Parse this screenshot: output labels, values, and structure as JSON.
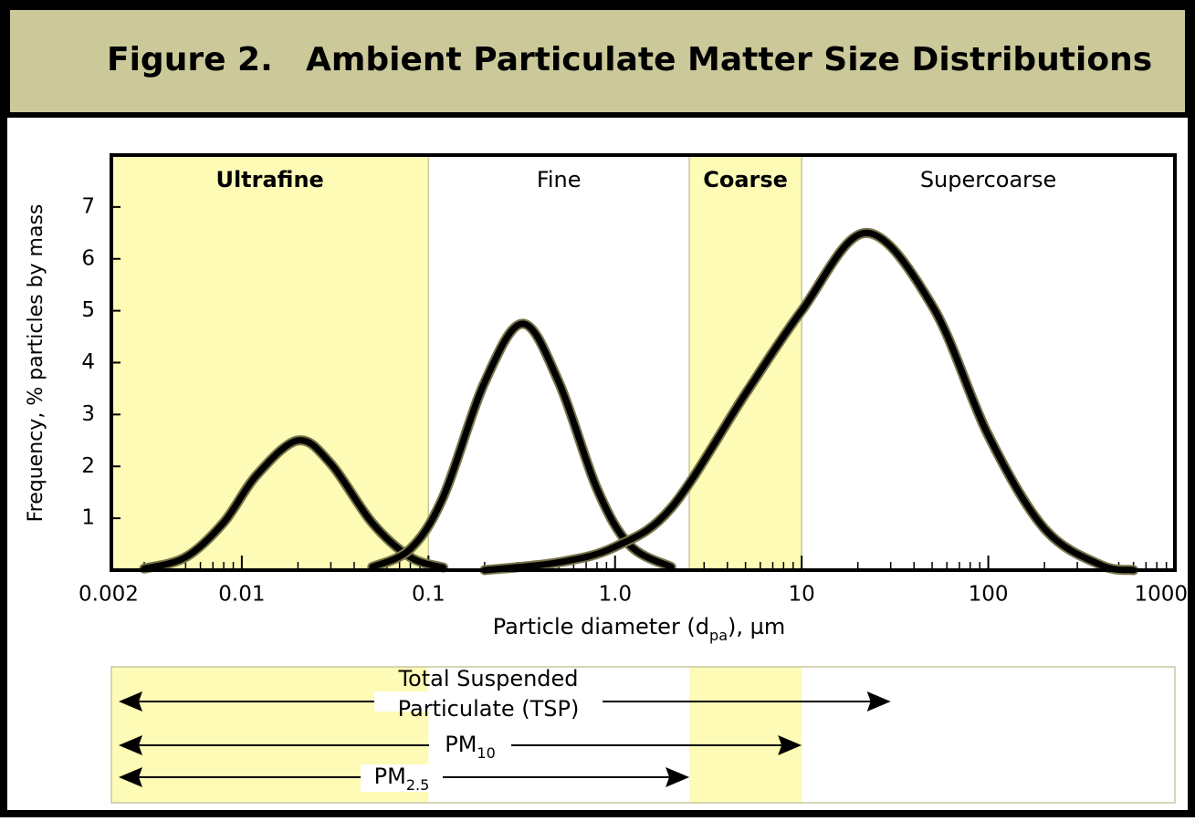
{
  "chart_data": {
    "type": "line",
    "figure_label": "Figure 2.",
    "title": "Ambient Particulate Matter Size Distributions",
    "y_label": "Frequency, % particles by mass",
    "x_label": {
      "text": "Particle diameter (d",
      "sub": "pa",
      "tail": "), µm"
    },
    "x_scale": "log",
    "minor_ticks": true,
    "xlim": [
      0.002,
      1000
    ],
    "xticks": [
      {
        "value": 0.002,
        "label": "0.002"
      },
      {
        "value": 0.01,
        "label": "0.01"
      },
      {
        "value": 0.1,
        "label": "0.1"
      },
      {
        "value": 1,
        "label": "1.0"
      },
      10,
      100,
      1000
    ],
    "ylim": [
      0,
      8
    ],
    "yticks": [
      1,
      2,
      3,
      4,
      5,
      6,
      7
    ],
    "regions": [
      {
        "label": "Ultrafine",
        "from": 0.002,
        "to": 0.1,
        "color": "#fdfbb5",
        "bold": true
      },
      {
        "label": "Fine",
        "from": 0.1,
        "to": 2.5,
        "color": "#ffffff",
        "bold": false
      },
      {
        "label": "Coarse",
        "from": 2.5,
        "to": 10,
        "color": "#fdfbb5",
        "bold": true
      },
      {
        "label": "Supercoarse",
        "from": 10,
        "to": 1000,
        "color": "#ffffff",
        "bold": false
      }
    ],
    "series": [
      {
        "color": "#000000",
        "x": [
          0.003,
          0.005,
          0.008,
          0.012,
          0.02,
          0.03,
          0.05,
          0.08,
          0.12
        ],
        "values": [
          0.03,
          0.25,
          0.92,
          1.83,
          2.5,
          2.05,
          0.91,
          0.25,
          0.05
        ]
      },
      {
        "color": "#000000",
        "x": [
          0.05,
          0.08,
          0.12,
          0.2,
          0.32,
          0.5,
          0.8,
          1.2,
          2
        ],
        "values": [
          0.06,
          0.41,
          1.41,
          3.62,
          4.75,
          3.62,
          1.57,
          0.48,
          0.06
        ]
      },
      {
        "color": "#000000",
        "x": [
          0.2,
          0.5,
          1,
          2,
          5,
          10,
          22,
          50,
          100,
          200,
          400,
          600
        ],
        "values": [
          0.0,
          0.15,
          0.45,
          1.2,
          3.4,
          5.0,
          6.5,
          5.1,
          2.6,
          0.8,
          0.1,
          0.0
        ]
      }
    ],
    "ranges": [
      {
        "lines": [
          "Total Suspended",
          "Particulate (TSP)"
        ],
        "from": 0.002,
        "to": 30
      },
      {
        "name": "PM",
        "sub": "10",
        "from": 0.002,
        "to": 10
      },
      {
        "name": "PM",
        "sub": "2.5",
        "from": 0.002,
        "to": 2.5
      }
    ]
  }
}
